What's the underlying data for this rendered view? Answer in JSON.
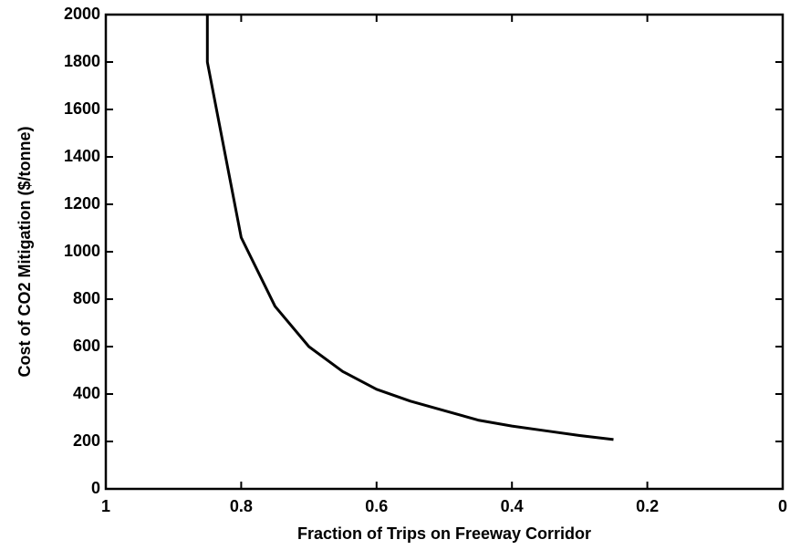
{
  "chart_data": {
    "type": "line",
    "xlabel": "Fraction of Trips on Freeway Corridor",
    "ylabel": "Cost of CO2 Mitigation ($/tonne)",
    "x": [
      0.85,
      0.85,
      0.8,
      0.75,
      0.7,
      0.65,
      0.6,
      0.55,
      0.5,
      0.45,
      0.4,
      0.35,
      0.3,
      0.25
    ],
    "series": [
      {
        "color": "#000000",
        "values": [
          2000,
          1800,
          1060,
          770,
          600,
          495,
          420,
          370,
          330,
          290,
          265,
          245,
          225,
          208
        ]
      }
    ],
    "xlim": [
      1,
      0
    ],
    "xticks": [
      1,
      0.8,
      0.6,
      0.4,
      0.2,
      0
    ],
    "ylim": [
      0,
      2000
    ],
    "yticks": [
      0,
      200,
      400,
      600,
      800,
      1000,
      1200,
      1400,
      1600,
      1800,
      2000
    ]
  }
}
